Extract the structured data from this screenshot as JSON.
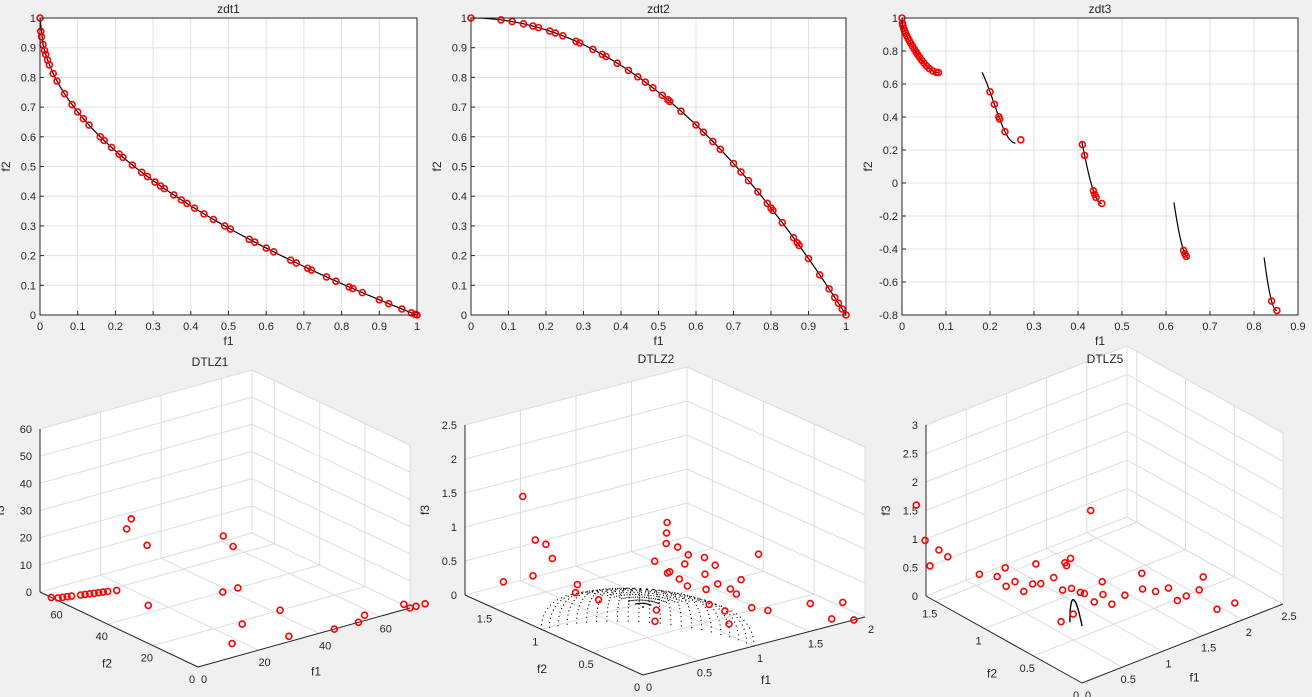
{
  "chart_data": [
    {
      "type": "scatter",
      "title": "zdt1",
      "xlabel": "f1",
      "ylabel": "f2",
      "xlim": [
        0,
        1
      ],
      "ylim": [
        0,
        1
      ],
      "xticks": [
        "0",
        "0.1",
        "0.2",
        "0.3",
        "0.4",
        "0.5",
        "0.6",
        "0.7",
        "0.8",
        "0.9",
        "1"
      ],
      "yticks": [
        "0",
        "0.1",
        "0.2",
        "0.3",
        "0.4",
        "0.5",
        "0.6",
        "0.7",
        "0.8",
        "0.9",
        "1"
      ],
      "grid": true,
      "front": "f2 = 1 - sqrt(f1)",
      "points_f1": [
        0,
        0.002,
        0.004,
        0.008,
        0.012,
        0.015,
        0.02,
        0.025,
        0.035,
        0.045,
        0.065,
        0.085,
        0.1,
        0.115,
        0.13,
        0.16,
        0.17,
        0.19,
        0.21,
        0.22,
        0.245,
        0.27,
        0.285,
        0.305,
        0.32,
        0.33,
        0.355,
        0.375,
        0.39,
        0.41,
        0.435,
        0.46,
        0.49,
        0.505,
        0.555,
        0.57,
        0.6,
        0.62,
        0.665,
        0.68,
        0.71,
        0.72,
        0.76,
        0.785,
        0.82,
        0.83,
        0.855,
        0.9,
        0.925,
        0.96,
        0.985,
        0.995,
        1.0
      ],
      "marker_color": "#ff0000",
      "line_color": "#000000"
    },
    {
      "type": "scatter",
      "title": "zdt2",
      "xlabel": "f1",
      "ylabel": "f2",
      "xlim": [
        0,
        1
      ],
      "ylim": [
        0,
        1
      ],
      "xticks": [
        "0",
        "0.1",
        "0.2",
        "0.3",
        "0.4",
        "0.5",
        "0.6",
        "0.7",
        "0.8",
        "0.9",
        "1"
      ],
      "yticks": [
        "0",
        "0.1",
        "0.2",
        "0.3",
        "0.4",
        "0.5",
        "0.6",
        "0.7",
        "0.8",
        "0.9",
        "1"
      ],
      "grid": true,
      "front": "f2 = 1 - f1^2",
      "points_f1": [
        0,
        0.08,
        0.11,
        0.14,
        0.165,
        0.18,
        0.21,
        0.225,
        0.245,
        0.28,
        0.29,
        0.325,
        0.35,
        0.36,
        0.39,
        0.42,
        0.445,
        0.465,
        0.485,
        0.51,
        0.525,
        0.53,
        0.56,
        0.6,
        0.62,
        0.645,
        0.665,
        0.7,
        0.72,
        0.74,
        0.765,
        0.79,
        0.8,
        0.805,
        0.83,
        0.86,
        0.87,
        0.875,
        0.9,
        0.93,
        0.955,
        0.97,
        0.98,
        0.99,
        1.0
      ],
      "marker_color": "#ff0000",
      "line_color": "#000000"
    },
    {
      "type": "scatter",
      "title": "zdt3",
      "xlabel": "f1",
      "ylabel": "f2",
      "xlim": [
        0,
        0.9
      ],
      "ylim": [
        -0.8,
        1
      ],
      "xticks": [
        "0",
        "0.1",
        "0.2",
        "0.3",
        "0.4",
        "0.5",
        "0.6",
        "0.7",
        "0.8",
        "0.9"
      ],
      "yticks": [
        "-0.8",
        "-0.6",
        "-0.4",
        "-0.2",
        "0",
        "0.2",
        "0.4",
        "0.6",
        "0.8",
        "1"
      ],
      "grid": true,
      "front": "f2 = 1 - sqrt(f1) - f1*sin(10*pi*f1)",
      "segments": [
        [
          0,
          0.083
        ],
        [
          0.182,
          0.258
        ],
        [
          0.409,
          0.454
        ],
        [
          0.618,
          0.653
        ],
        [
          0.823,
          0.852
        ]
      ],
      "points_f1": [
        0,
        0.001,
        0.002,
        0.004,
        0.006,
        0.008,
        0.011,
        0.014,
        0.017,
        0.02,
        0.024,
        0.028,
        0.032,
        0.036,
        0.04,
        0.045,
        0.05,
        0.056,
        0.062,
        0.07,
        0.078,
        0.083,
        0.2,
        0.21,
        0.22,
        0.222,
        0.234,
        0.27,
        0.41,
        0.415,
        0.435,
        0.438,
        0.441,
        0.454,
        0.64,
        0.643,
        0.646,
        0.84,
        0.852
      ],
      "marker_color": "#ff0000",
      "line_color": "#000000"
    },
    {
      "type": "scatter3d",
      "title": "DTLZ1",
      "xlabel": "f1",
      "ylabel": "f2",
      "zlabel": "f3",
      "xticks": [
        "0",
        "20",
        "40",
        "60"
      ],
      "yticks": [
        "0",
        "20",
        "40",
        "60"
      ],
      "zticks": [
        "0",
        "10",
        "20",
        "30",
        "40",
        "50",
        "60"
      ],
      "grid": true,
      "points": [
        [
          0,
          65,
          0
        ],
        [
          0,
          62,
          1
        ],
        [
          0,
          60,
          2
        ],
        [
          0,
          58,
          3
        ],
        [
          0,
          56,
          4
        ],
        [
          0,
          52,
          6
        ],
        [
          0,
          50,
          7
        ],
        [
          0,
          48,
          8
        ],
        [
          0,
          46,
          9
        ],
        [
          0,
          44,
          10
        ],
        [
          0,
          42,
          11
        ],
        [
          0,
          40,
          12
        ],
        [
          0,
          36,
          14
        ],
        [
          0,
          22,
          14
        ],
        [
          10,
          45,
          30
        ],
        [
          13,
          47,
          32
        ],
        [
          13,
          40,
          25
        ],
        [
          27,
          25,
          30
        ],
        [
          28,
          22,
          27
        ],
        [
          15,
          5,
          2
        ],
        [
          28,
          18,
          0
        ],
        [
          30,
          0,
          2
        ],
        [
          45,
          0,
          0
        ],
        [
          53,
          0,
          0
        ],
        [
          55,
          0,
          2
        ],
        [
          42,
          20,
          0
        ],
        [
          43,
          40,
          0
        ],
        [
          38,
          40,
          0
        ],
        [
          68,
          0,
          2
        ],
        [
          75,
          0,
          0
        ],
        [
          70,
          0,
          0
        ],
        [
          72,
          0,
          0
        ]
      ],
      "marker_color": "#ff0000"
    },
    {
      "type": "scatter3d",
      "title": "DTLZ2",
      "xlabel": "f1",
      "ylabel": "f2",
      "zlabel": "f3",
      "xticks": [
        "0",
        "0.5",
        "1",
        "1.5",
        "2"
      ],
      "yticks": [
        "0",
        "0.5",
        "1",
        "1.5"
      ],
      "zticks": [
        "0",
        "0.5",
        "1",
        "1.5",
        "2",
        "2.5"
      ],
      "grid": true,
      "front": "unit sphere octant f1^2 + f2^2 + f3^2 = 1",
      "points": [
        [
          0.2,
          1.4,
          1.6
        ],
        [
          0.3,
          1.7,
          0.1
        ],
        [
          0.1,
          1.0,
          1.0
        ],
        [
          0.2,
          1.3,
          0.5
        ],
        [
          0.4,
          1.1,
          0.3
        ],
        [
          0.5,
          1.5,
          0.7
        ],
        [
          0.45,
          1.55,
          0.75
        ],
        [
          0.6,
          1.3,
          0.2
        ],
        [
          0.7,
          1.2,
          0.0
        ],
        [
          0.9,
          0.85,
          0.0
        ],
        [
          0.82,
          0.78,
          0.8
        ],
        [
          0.85,
          0.7,
          1.1
        ],
        [
          0.9,
          0.75,
          1.2
        ],
        [
          0.95,
          0.8,
          1.3
        ],
        [
          0.9,
          0.72,
          0.65
        ],
        [
          0.95,
          0.68,
          0.55
        ],
        [
          1.0,
          0.68,
          0.75
        ],
        [
          0.95,
          0.6,
          0.5
        ],
        [
          1.1,
          0.58,
          0.4
        ],
        [
          1.15,
          0.52,
          0.5
        ],
        [
          1.2,
          0.45,
          0.45
        ],
        [
          1.25,
          0.4,
          0.6
        ],
        [
          1.3,
          0.35,
          0.2
        ],
        [
          1.1,
          0.55,
          0.2
        ],
        [
          1.2,
          0.7,
          0.5
        ],
        [
          1.3,
          0.5,
          0.3
        ],
        [
          1.4,
          0.3,
          0.15
        ],
        [
          1.6,
          0.1,
          0.3
        ],
        [
          1.7,
          0.0,
          0.1
        ],
        [
          1.8,
          0.0,
          0.3
        ],
        [
          1.9,
          0.0,
          0.0
        ],
        [
          1.0,
          0.75,
          0.95
        ],
        [
          1.05,
          0.7,
          0.85
        ],
        [
          1.15,
          0.65,
          0.8
        ],
        [
          1.2,
          0.6,
          0.7
        ],
        [
          0.75,
          0.7,
          0.0
        ],
        [
          1.05,
          0.3,
          0.1
        ],
        [
          1.15,
          0.45,
          0.15
        ],
        [
          1.0,
          0.85,
          0.5
        ],
        [
          1.5,
          0.5,
          0.8
        ]
      ],
      "marker_color": "#ff0000",
      "mesh_color": "#000000"
    },
    {
      "type": "scatter3d",
      "title": "DTLZ5",
      "xlabel": "f1",
      "ylabel": "f2",
      "zlabel": "f3",
      "xticks": [
        "0",
        "0.5",
        "1",
        "1.5",
        "2",
        "2.5"
      ],
      "yticks": [
        "0",
        "0.5",
        "1",
        "1.5"
      ],
      "zticks": [
        "0",
        "0.5",
        "1",
        "1.5",
        "2",
        "2.5",
        "3"
      ],
      "grid": true,
      "front": "degenerate curve f1 = f2, f1^2 + f2^2 + f3^2 = 1",
      "points": [
        [
          0.0,
          1.7,
          1.5
        ],
        [
          0.05,
          1.6,
          0.5
        ],
        [
          0.1,
          1.55,
          0.8
        ],
        [
          0.05,
          1.65,
          0.9
        ],
        [
          0.15,
          1.5,
          0.7
        ],
        [
          0.3,
          1.3,
          0.5
        ],
        [
          0.4,
          1.2,
          0.5
        ],
        [
          0.45,
          1.15,
          0.35
        ],
        [
          0.5,
          1.2,
          0.6
        ],
        [
          0.5,
          1.1,
          0.45
        ],
        [
          0.55,
          1.05,
          0.3
        ],
        [
          0.6,
          1.0,
          0.45
        ],
        [
          0.7,
          1.0,
          0.4
        ],
        [
          0.7,
          1.05,
          0.7
        ],
        [
          0.8,
          0.95,
          0.5
        ],
        [
          0.85,
          0.9,
          0.3
        ],
        [
          0.9,
          0.85,
          0.35
        ],
        [
          0.95,
          0.8,
          0.3
        ],
        [
          1.0,
          0.8,
          0.25
        ],
        [
          1.0,
          0.7,
          0.2
        ],
        [
          1.1,
          0.6,
          0.2
        ],
        [
          1.05,
          0.65,
          0.35
        ],
        [
          1.2,
          0.55,
          0.35
        ],
        [
          1.3,
          0.45,
          0.5
        ],
        [
          1.35,
          0.5,
          0.7
        ],
        [
          1.4,
          0.4,
          0.45
        ],
        [
          1.5,
          0.35,
          0.5
        ],
        [
          1.55,
          0.3,
          0.3
        ],
        [
          1.6,
          0.25,
          0.4
        ],
        [
          1.7,
          0.2,
          0.5
        ],
        [
          1.8,
          0.1,
          0.2
        ],
        [
          1.9,
          0.0,
          0.35
        ],
        [
          1.75,
          0.2,
          0.7
        ],
        [
          1.2,
          0.9,
          1.5
        ],
        [
          0.9,
          0.9,
          0.7
        ],
        [
          1.0,
          1.0,
          0.6
        ],
        [
          0.65,
          0.75,
          0.0
        ],
        [
          0.8,
          0.75,
          0.05
        ],
        [
          1.1,
          0.7,
          0.5
        ],
        [
          0.95,
          0.9,
          0.8
        ]
      ],
      "marker_color": "#ff0000",
      "line_color": "#000000"
    }
  ]
}
